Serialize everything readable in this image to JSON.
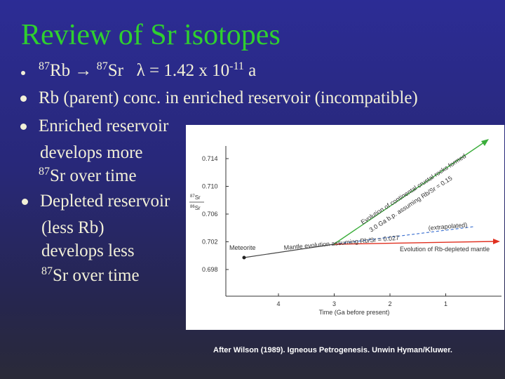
{
  "slide": {
    "title": "Review of Sr isotopes",
    "bullets": [
      {
        "lines": [
          [
            "87",
            "Rb → ",
            "87",
            "Sr   λ = 1.42 x 10",
            "-11",
            " a"
          ]
        ]
      },
      {
        "lines": [
          [
            "Rb (parent) conc. in enriched reservoir (incompatible)"
          ]
        ]
      },
      {
        "lines": [
          [
            "Enriched reservoir"
          ],
          [
            "develops more"
          ],
          [
            "87",
            "Sr over time"
          ]
        ]
      },
      {
        "lines": [
          [
            "Depleted reservoir"
          ],
          [
            "(less Rb)"
          ],
          [
            "develops less"
          ],
          [
            "87",
            "Sr over time"
          ]
        ]
      }
    ],
    "figure": {
      "yticks": [
        "0.714",
        "0.710",
        "0.706",
        "0.702",
        "0.698"
      ],
      "xticks": [
        "4",
        "3",
        "2",
        "1"
      ],
      "xlabel": "Time (Ga before present)",
      "ylabel": [
        "87",
        "Sr",
        "86",
        "Sr"
      ],
      "labels": {
        "meteorite": "Meteorite",
        "mantle": "Mantle evolution assuming Rb/Sr = 0.027",
        "extrapolated": "(extrapolated)",
        "depleted": "Evolution of Rb-depleted mantle",
        "crust1": "Evolution of continental crustal rocks formed",
        "crust2": "3.0 Ga b.p. assuming Rb/Sr = 0.15"
      }
    },
    "caption": "After Wilson (1989). Igneous Petrogenesis. Unwin Hyman/Kluwer."
  }
}
